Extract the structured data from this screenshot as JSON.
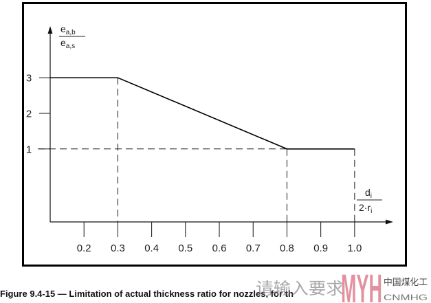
{
  "figure": {
    "caption": "Figure 9.4-15 — Limitation of actual thickness ratio for nozzles, for th"
  },
  "watermark": {
    "text": "请输入要求"
  },
  "logo": {
    "mark": "MYH",
    "name_cn": "中国煤化工",
    "name_latin": "CNMHG",
    "mark_color": "#dd7f8e"
  },
  "chart_data": {
    "type": "line",
    "title": "",
    "ylabel": {
      "numerator": "e",
      "numerator_subscript": "a,b",
      "denominator": "e",
      "denominator_subscript": "a,s"
    },
    "xlabel": {
      "numerator": "d",
      "numerator_subscript": "i",
      "denominator": "2·r",
      "denominator_subscript": "i"
    },
    "x_tick_labels": [
      "0.2",
      "0.3",
      "0.4",
      "0.5",
      "0.6",
      "0.7",
      "0.8",
      "0.9",
      "1.0"
    ],
    "y_tick_labels": [
      "1",
      "2",
      "3"
    ],
    "xlim": [
      0.1,
      1.11
    ],
    "ylim": [
      -1.05,
      4.45
    ],
    "grid": false,
    "series": [
      {
        "x": [
          0.1,
          0.3,
          0.8,
          1.0
        ],
        "y": [
          3,
          3,
          1,
          1
        ],
        "color": "#000000"
      }
    ],
    "reference_lines": [
      {
        "orientation": "vertical",
        "x": 0.3,
        "y_from": 3,
        "dashed": true
      },
      {
        "orientation": "vertical",
        "x": 0.8,
        "y_from": 1,
        "dashed": true
      },
      {
        "orientation": "vertical",
        "x": 1.0,
        "y_from": 1,
        "dashed": true
      },
      {
        "orientation": "horizontal",
        "y": 1,
        "x_to": 0.8,
        "dashed": true
      }
    ]
  }
}
